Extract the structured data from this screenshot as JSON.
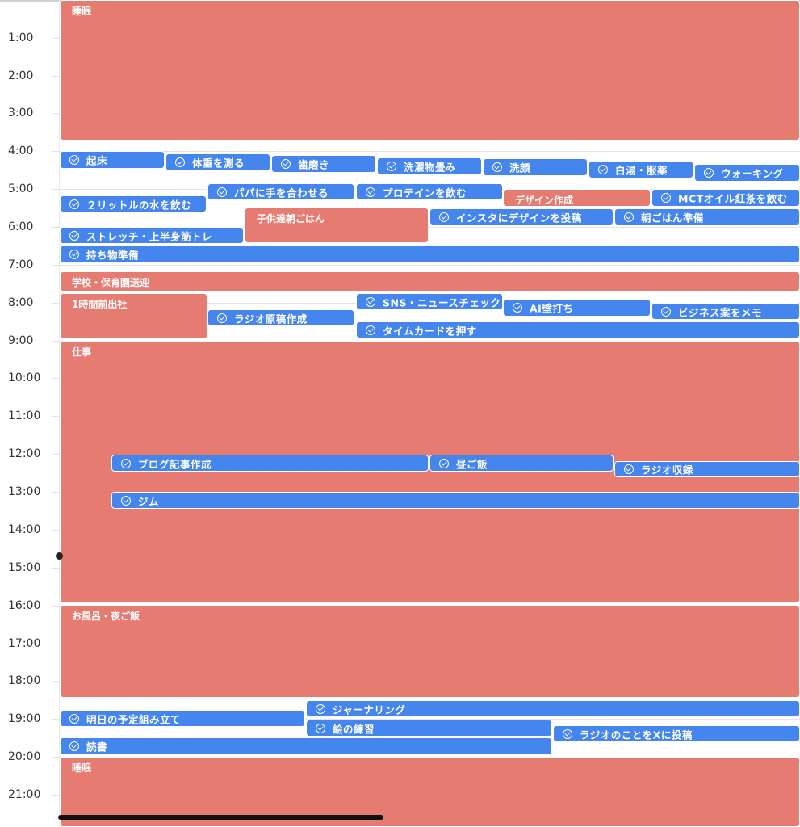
{
  "hours": [
    "1:00",
    "2:00",
    "3:00",
    "4:00",
    "5:00",
    "6:00",
    "7:00",
    "8:00",
    "9:00",
    "10:00",
    "11:00",
    "12:00",
    "13:00",
    "14:00",
    "15:00",
    "16:00",
    "17:00",
    "18:00",
    "19:00",
    "20:00",
    "21:00"
  ],
  "events": [
    {
      "label": "睡眠",
      "kind": "red"
    },
    {
      "label": "起床",
      "kind": "blue"
    },
    {
      "label": "体重を測る",
      "kind": "blue"
    },
    {
      "label": "歯磨き",
      "kind": "blue"
    },
    {
      "label": "洗濯物畳み",
      "kind": "blue"
    },
    {
      "label": "洗顔",
      "kind": "blue"
    },
    {
      "label": "白湯・服薬",
      "kind": "blue"
    },
    {
      "label": "ウォーキング",
      "kind": "blue"
    },
    {
      "label": "パパに手を合わせる",
      "kind": "blue"
    },
    {
      "label": "プロテインを飲む",
      "kind": "blue"
    },
    {
      "label": "デザイン作成",
      "kind": "red"
    },
    {
      "label": "２リットルの水を飲む",
      "kind": "blue"
    },
    {
      "label": "MCTオイル紅茶を飲む",
      "kind": "blue"
    },
    {
      "label": "子供達朝ごはん",
      "kind": "red"
    },
    {
      "label": "インスタにデザインを投稿",
      "kind": "blue"
    },
    {
      "label": "朝ごはん準備",
      "kind": "blue"
    },
    {
      "label": "ストレッチ・上半身筋トレ",
      "kind": "blue"
    },
    {
      "label": "持ち物準備",
      "kind": "blue"
    },
    {
      "label": "学校・保育園送迎",
      "kind": "red"
    },
    {
      "label": "1時間前出社",
      "kind": "red"
    },
    {
      "label": "SNS・ニュースチェック",
      "kind": "blue"
    },
    {
      "label": "AI壁打ち",
      "kind": "blue"
    },
    {
      "label": "ラジオ原稿作成",
      "kind": "blue"
    },
    {
      "label": "ビジネス案をメモ",
      "kind": "blue"
    },
    {
      "label": "タイムカードを押す",
      "kind": "blue"
    },
    {
      "label": "仕事",
      "kind": "red"
    },
    {
      "label": "ブログ記事作成",
      "kind": "blue"
    },
    {
      "label": "昼ご飯",
      "kind": "blue"
    },
    {
      "label": "ラジオ収録",
      "kind": "blue"
    },
    {
      "label": "ジム",
      "kind": "blue"
    },
    {
      "label": "お風呂・夜ご飯",
      "kind": "red"
    },
    {
      "label": "ジャーナリング",
      "kind": "blue"
    },
    {
      "label": "明日の予定組み立て",
      "kind": "blue"
    },
    {
      "label": "絵の練習",
      "kind": "blue"
    },
    {
      "label": "ラジオのことをXに投稿",
      "kind": "blue"
    },
    {
      "label": "読書",
      "kind": "blue"
    },
    {
      "label": "睡眠",
      "kind": "red"
    }
  ],
  "colors": {
    "event_red": "#e57b71",
    "event_blue": "#4585ee",
    "now_line": "#222222"
  },
  "icons": {
    "task": "check-circle-icon"
  }
}
